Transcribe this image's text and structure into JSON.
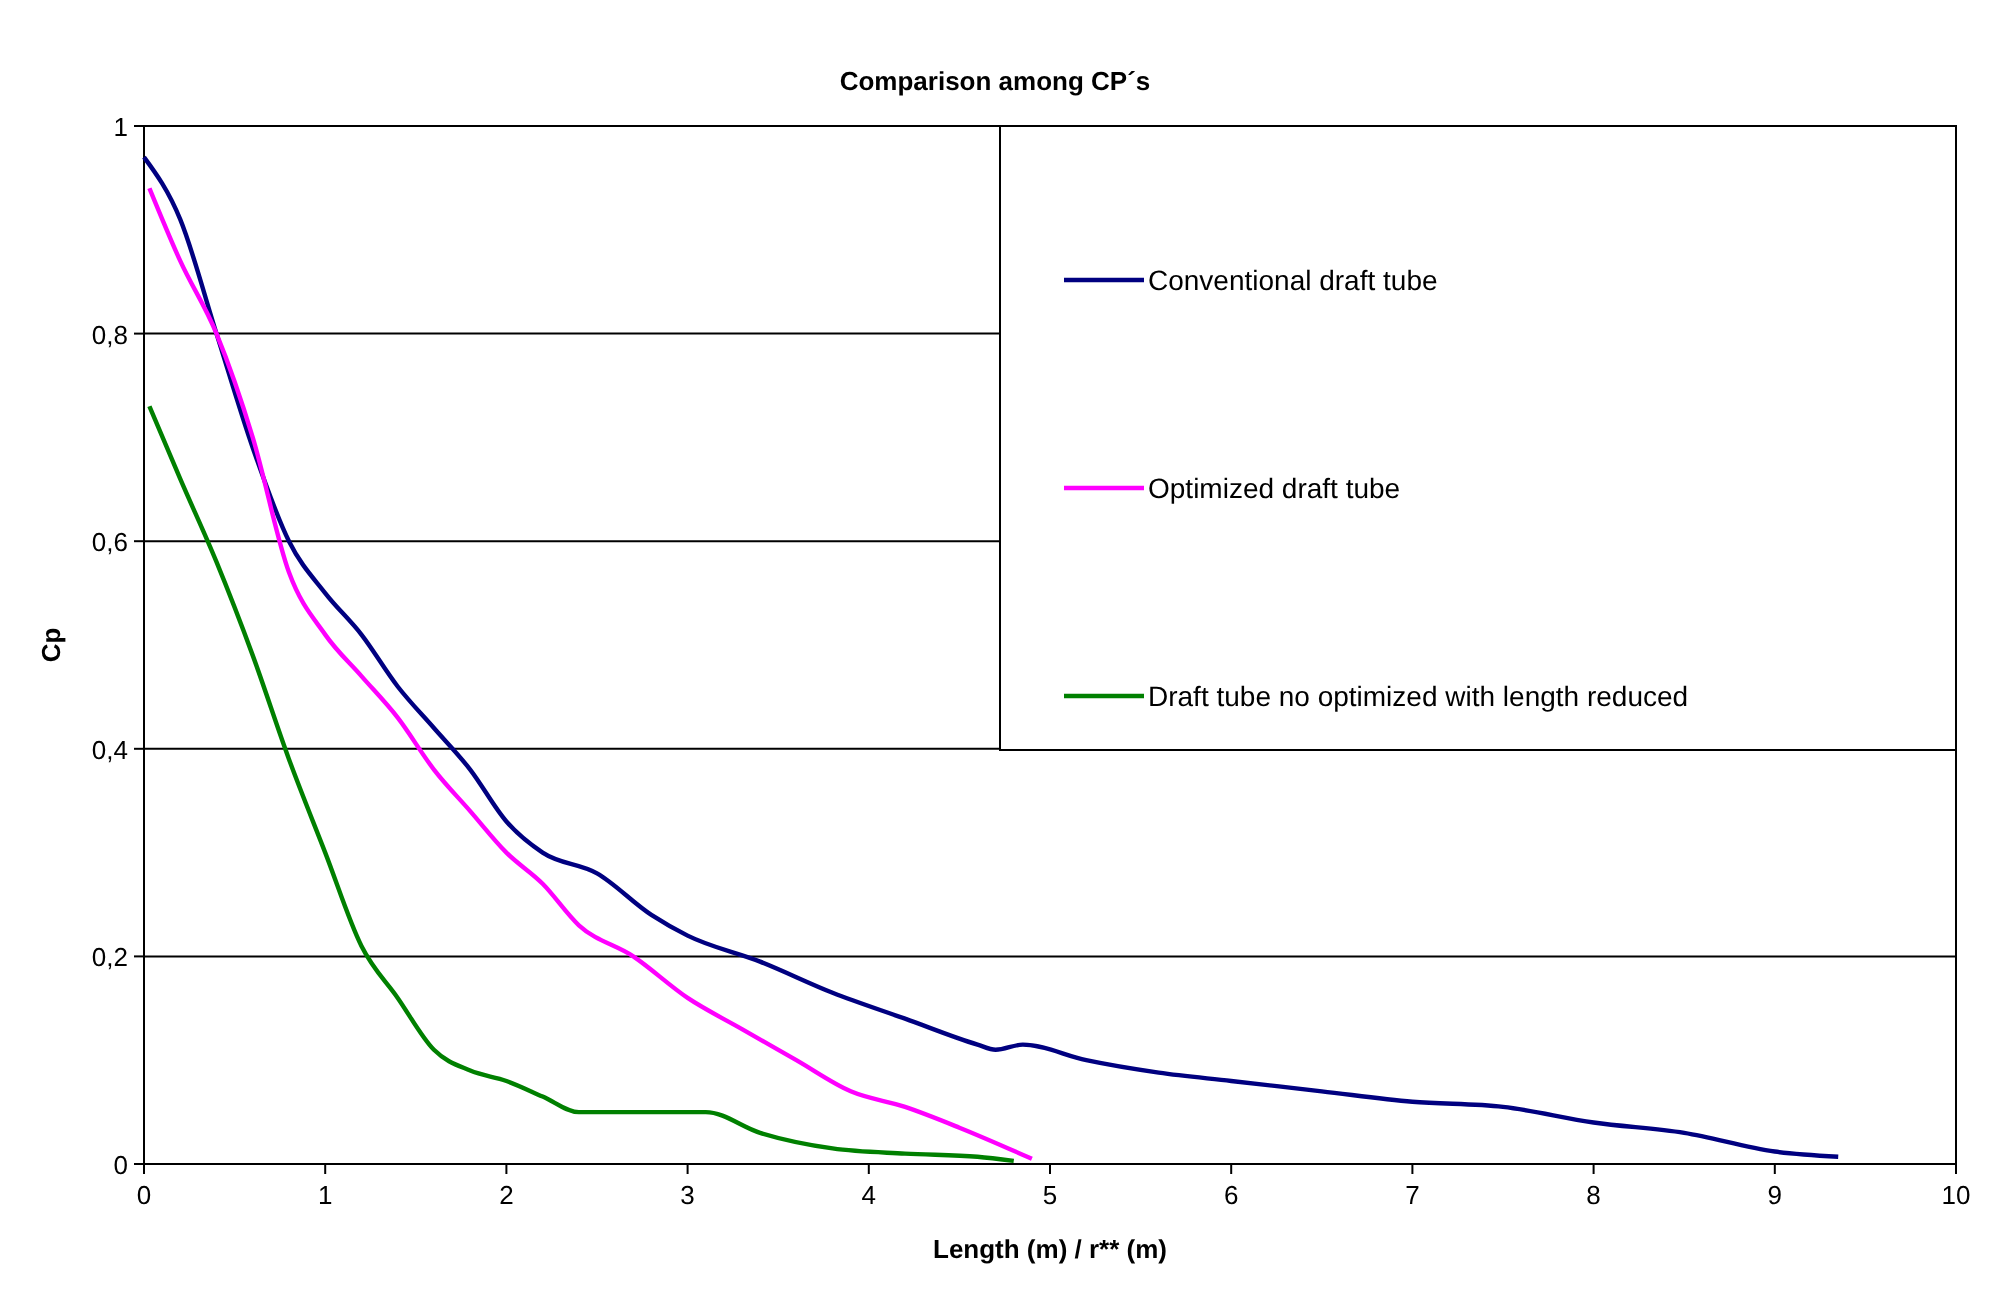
{
  "chart_data": {
    "type": "line",
    "title": "Comparison among CP´s",
    "xlabel": "Length (m) / r** (m)",
    "ylabel": "Cp",
    "xlim": [
      0,
      10
    ],
    "xticks": [
      0,
      1,
      2,
      3,
      4,
      5,
      6,
      7,
      8,
      9,
      10
    ],
    "ylim": [
      0,
      1
    ],
    "yticks": [
      0,
      {
        "value": 0.2,
        "label": "0,2"
      },
      {
        "value": 0.4,
        "label": "0,4"
      },
      {
        "value": 0.6,
        "label": "0,6"
      },
      {
        "value": 0.8,
        "label": "0,8"
      },
      1
    ],
    "grid": "y",
    "legend": "top right",
    "marker": "none",
    "line_style": "solid",
    "series": [
      {
        "name": "Conventional draft tube",
        "color": "#000080",
        "x": [
          0,
          0.2,
          0.4,
          0.6,
          0.8,
          1,
          1.2,
          1.4,
          1.6,
          1.8,
          2,
          2.2,
          2.5,
          2.8,
          3,
          3.4,
          3.8,
          4.2,
          4.6,
          4.7,
          4.85,
          5.2,
          5.6,
          6,
          6.5,
          7,
          7.5,
          8,
          8.5,
          9,
          9.35
        ],
        "values": [
          0.97,
          0.91,
          0.8,
          0.69,
          0.6,
          0.55,
          0.51,
          0.46,
          0.42,
          0.38,
          0.33,
          0.3,
          0.28,
          0.24,
          0.22,
          0.195,
          0.165,
          0.14,
          0.115,
          0.11,
          0.115,
          0.1,
          0.088,
          0.08,
          0.07,
          0.06,
          0.055,
          0.04,
          0.03,
          0.012,
          0.007
        ]
      },
      {
        "name": "Optimized draft tube",
        "color": "#ff00ff",
        "x": [
          0.03,
          0.2,
          0.4,
          0.6,
          0.8,
          1,
          1.2,
          1.4,
          1.6,
          1.8,
          2,
          2.2,
          2.4,
          2.7,
          3,
          3.3,
          3.6,
          3.9,
          4.2,
          4.5,
          4.9
        ],
        "values": [
          0.94,
          0.87,
          0.8,
          0.7,
          0.57,
          0.51,
          0.47,
          0.43,
          0.38,
          0.34,
          0.3,
          0.27,
          0.23,
          0.2,
          0.16,
          0.13,
          0.1,
          0.07,
          0.055,
          0.035,
          0.005
        ]
      },
      {
        "name": "Draft tube no optimized with length reduced",
        "color": "#008000",
        "x": [
          0.03,
          0.2,
          0.4,
          0.6,
          0.8,
          1,
          1.2,
          1.4,
          1.6,
          1.8,
          2,
          2.2,
          2.4,
          2.8,
          3.1,
          3.4,
          3.8,
          4.2,
          4.6,
          4.8
        ],
        "values": [
          0.73,
          0.66,
          0.58,
          0.49,
          0.39,
          0.3,
          0.21,
          0.16,
          0.11,
          0.09,
          0.08,
          0.065,
          0.05,
          0.05,
          0.05,
          0.03,
          0.015,
          0.01,
          0.007,
          0.003
        ]
      }
    ]
  }
}
